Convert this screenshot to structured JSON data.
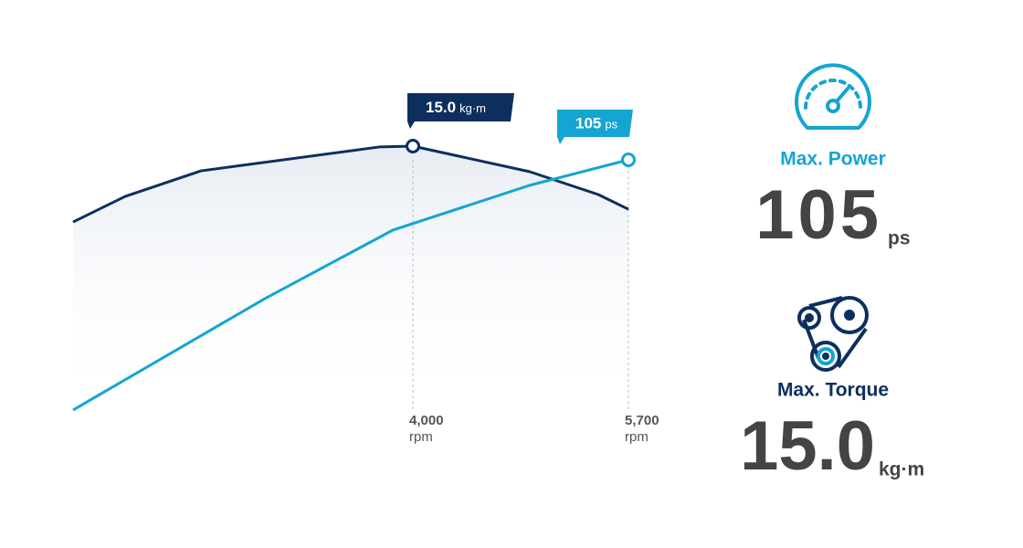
{
  "chart_data": {
    "type": "line",
    "xlim": [
      1320,
      5700
    ],
    "xticks": [
      {
        "value": 4000,
        "label": "4,000"
      },
      {
        "value": 5700,
        "label": "5,700"
      }
    ],
    "x_unit": "rpm",
    "series": [
      {
        "name": "Max. Torque",
        "color": "#0d2f5e",
        "unit": "kg·m",
        "x": [
          1320,
          1731,
          2329,
          3733,
          4000,
          4922,
          5462,
          5700
        ],
        "values": [
          10.55,
          12.05,
          13.55,
          14.95,
          15.0,
          13.5,
          12.16,
          11.3
        ],
        "peak_label": "15.0"
      },
      {
        "name": "Max. Power",
        "color": "#14a5d2",
        "unit": "ps",
        "x": [
          1320,
          2833,
          3842,
          4922,
          5700
        ],
        "values": [
          10.7,
          52.7,
          78.5,
          95.4,
          105
        ],
        "peak_label": "105"
      }
    ]
  },
  "stats": [
    {
      "label": "Max. Power",
      "value": "105",
      "unit": "ps"
    },
    {
      "label": "Max. Torque",
      "value": "15.0",
      "unit": "kg·m"
    }
  ]
}
